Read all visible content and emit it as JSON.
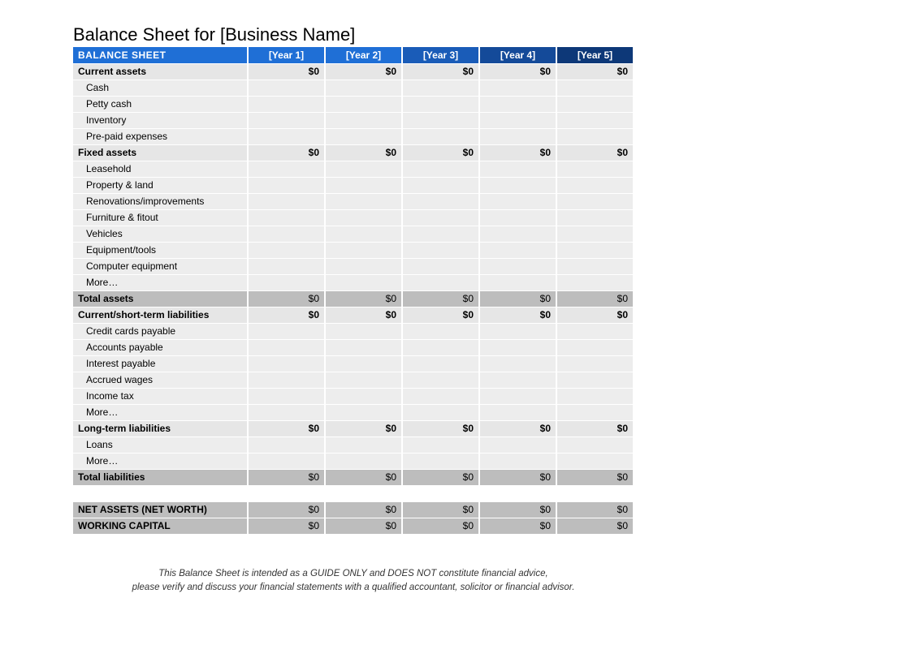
{
  "title": "Balance Sheet for [Business Name]",
  "header": {
    "label": "BALANCE SHEET",
    "years": [
      "[Year 1]",
      "[Year 2]",
      "[Year 3]",
      "[Year 4]",
      "[Year 5]"
    ],
    "year_bg_colors": [
      "#1f6fd6",
      "#1f6fd6",
      "#1a5cb8",
      "#144a99",
      "#0d3878"
    ]
  },
  "rows": [
    {
      "type": "section",
      "label": "Current assets",
      "values": [
        "$0",
        "$0",
        "$0",
        "$0",
        "$0"
      ]
    },
    {
      "type": "item",
      "label": "Cash",
      "values": [
        "",
        "",
        "",
        "",
        ""
      ]
    },
    {
      "type": "item",
      "label": "Petty cash",
      "values": [
        "",
        "",
        "",
        "",
        ""
      ]
    },
    {
      "type": "item",
      "label": "Inventory",
      "values": [
        "",
        "",
        "",
        "",
        ""
      ]
    },
    {
      "type": "item",
      "label": "Pre-paid expenses",
      "values": [
        "",
        "",
        "",
        "",
        ""
      ]
    },
    {
      "type": "section",
      "label": "Fixed assets",
      "values": [
        "$0",
        "$0",
        "$0",
        "$0",
        "$0"
      ]
    },
    {
      "type": "item",
      "label": "Leasehold",
      "values": [
        "",
        "",
        "",
        "",
        ""
      ]
    },
    {
      "type": "item",
      "label": "Property & land",
      "values": [
        "",
        "",
        "",
        "",
        ""
      ]
    },
    {
      "type": "item",
      "label": "Renovations/improvements",
      "values": [
        "",
        "",
        "",
        "",
        ""
      ]
    },
    {
      "type": "item",
      "label": "Furniture & fitout",
      "values": [
        "",
        "",
        "",
        "",
        ""
      ]
    },
    {
      "type": "item",
      "label": "Vehicles",
      "values": [
        "",
        "",
        "",
        "",
        ""
      ]
    },
    {
      "type": "item",
      "label": "Equipment/tools",
      "values": [
        "",
        "",
        "",
        "",
        ""
      ]
    },
    {
      "type": "item",
      "label": "Computer equipment",
      "values": [
        "",
        "",
        "",
        "",
        ""
      ]
    },
    {
      "type": "item",
      "label": "More…",
      "values": [
        "",
        "",
        "",
        "",
        ""
      ]
    },
    {
      "type": "total",
      "label": "Total assets",
      "values": [
        "$0",
        "$0",
        "$0",
        "$0",
        "$0"
      ]
    },
    {
      "type": "section",
      "label": "Current/short-term liabilities",
      "values": [
        "$0",
        "$0",
        "$0",
        "$0",
        "$0"
      ]
    },
    {
      "type": "item",
      "label": "Credit cards payable",
      "values": [
        "",
        "",
        "",
        "",
        ""
      ]
    },
    {
      "type": "item",
      "label": "Accounts payable",
      "values": [
        "",
        "",
        "",
        "",
        ""
      ]
    },
    {
      "type": "item",
      "label": "Interest payable",
      "values": [
        "",
        "",
        "",
        "",
        ""
      ]
    },
    {
      "type": "item",
      "label": "Accrued wages",
      "values": [
        "",
        "",
        "",
        "",
        ""
      ]
    },
    {
      "type": "item",
      "label": "Income tax",
      "values": [
        "",
        "",
        "",
        "",
        ""
      ]
    },
    {
      "type": "item",
      "label": "More…",
      "values": [
        "",
        "",
        "",
        "",
        ""
      ]
    },
    {
      "type": "section",
      "label": "Long-term liabilities",
      "values": [
        "$0",
        "$0",
        "$0",
        "$0",
        "$0"
      ]
    },
    {
      "type": "item",
      "label": "Loans",
      "values": [
        "",
        "",
        "",
        "",
        ""
      ]
    },
    {
      "type": "item",
      "label": "More…",
      "values": [
        "",
        "",
        "",
        "",
        ""
      ]
    },
    {
      "type": "total",
      "label": "Total liabilities",
      "values": [
        "$0",
        "$0",
        "$0",
        "$0",
        "$0"
      ]
    },
    {
      "type": "blank",
      "label": "",
      "values": [
        "",
        "",
        "",
        "",
        ""
      ]
    },
    {
      "type": "summary",
      "label": "NET ASSETS (NET WORTH)",
      "values": [
        "$0",
        "$0",
        "$0",
        "$0",
        "$0"
      ]
    },
    {
      "type": "summary",
      "label": "WORKING CAPITAL",
      "values": [
        "$0",
        "$0",
        "$0",
        "$0",
        "$0"
      ]
    }
  ],
  "disclaimer": {
    "line1": "This Balance Sheet is intended as a GUIDE ONLY and DOES NOT constitute financial advice,",
    "line2": "please verify and discuss your financial statements with a qualified accountant, solicitor or financial advisor."
  }
}
